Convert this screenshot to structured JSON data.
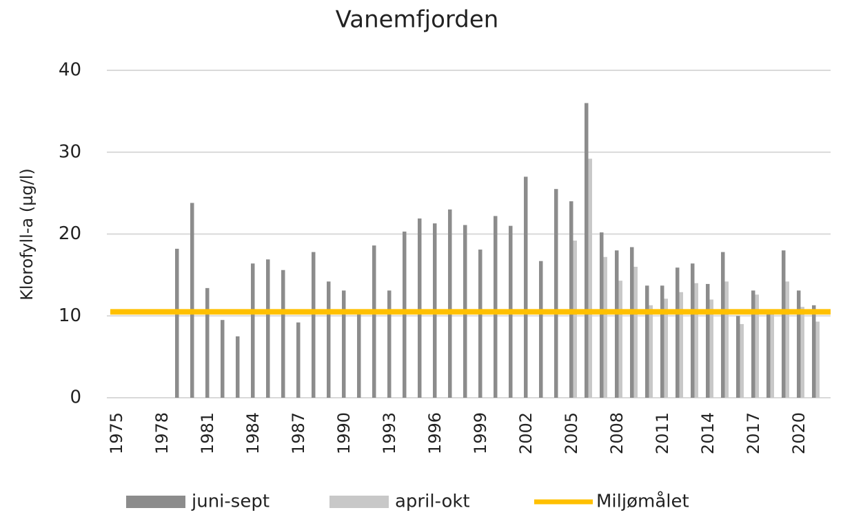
{
  "chart_data": {
    "type": "bar",
    "title": "Vanemfjorden",
    "y_label": "Klorofyll-a (µg/l)",
    "categories": [
      "1975",
      null,
      null,
      "1978",
      null,
      null,
      "1981",
      null,
      null,
      "1984",
      null,
      null,
      "1987",
      null,
      null,
      "1990",
      null,
      null,
      "1993",
      null,
      null,
      "1996",
      null,
      null,
      "1999",
      null,
      null,
      "2002",
      null,
      null,
      "2005",
      null,
      null,
      "2008",
      null,
      null,
      "2011",
      null,
      null,
      "2014",
      null,
      null,
      "2017",
      null,
      null,
      "2020",
      null
    ],
    "series": [
      {
        "name": "juni-sept",
        "color": "#8c8c8c",
        "values": [
          null,
          null,
          null,
          null,
          18.2,
          23.8,
          13.4,
          9.5,
          7.5,
          16.4,
          16.9,
          15.6,
          9.2,
          17.8,
          14.2,
          13.1,
          10.5,
          18.6,
          13.1,
          20.3,
          21.9,
          21.3,
          23.0,
          21.1,
          18.1,
          22.2,
          21.0,
          27.0,
          16.7,
          25.5,
          24.0,
          36.0,
          20.2,
          18.0,
          18.4,
          13.7,
          13.7,
          15.9,
          16.4,
          13.9,
          17.8,
          10.0,
          13.1,
          10.3,
          18.0,
          13.1,
          11.3
        ]
      },
      {
        "name": "april-okt",
        "color": "#c8c8c8",
        "values": [
          null,
          null,
          null,
          null,
          null,
          null,
          null,
          null,
          null,
          null,
          null,
          null,
          null,
          null,
          null,
          null,
          null,
          null,
          null,
          null,
          null,
          null,
          null,
          null,
          null,
          null,
          null,
          null,
          null,
          null,
          19.2,
          29.2,
          17.2,
          14.3,
          16.0,
          11.3,
          12.1,
          12.9,
          14.0,
          12.0,
          14.2,
          9.0,
          12.6,
          10.3,
          14.2,
          11.1,
          9.3
        ]
      }
    ],
    "target": {
      "name": "Miljømålet",
      "color": "#ffc000",
      "value": 10.5
    },
    "ylim": [
      0,
      40
    ],
    "yticks": [
      0,
      10,
      20,
      30,
      40
    ],
    "grid": true
  }
}
